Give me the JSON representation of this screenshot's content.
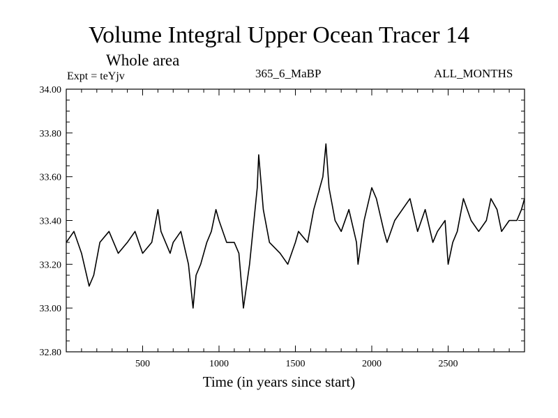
{
  "chart_data": {
    "type": "line",
    "title": "Volume Integral Upper Ocean Tracer 14",
    "subtitle": "Whole area",
    "experiment_label": "Expt = teYjv",
    "run_label": "365_6_MaBP",
    "period_label": "ALL_MONTHS",
    "xlabel": "Time (in years since start)",
    "ylabel": "",
    "xlim": [
      0,
      3000
    ],
    "ylim": [
      32.8,
      34.0
    ],
    "x_ticks": [
      500,
      1000,
      1500,
      2000,
      2500
    ],
    "x_tick_labels": [
      "500",
      "1000",
      "1500",
      "2000",
      "2500"
    ],
    "y_ticks": [
      32.8,
      33.0,
      33.2,
      33.4,
      33.6,
      33.8,
      34.0
    ],
    "y_tick_labels": [
      "32.80",
      "33.00",
      "33.20",
      "33.40",
      "33.60",
      "33.80",
      "34.00"
    ],
    "grid": false,
    "series": [
      {
        "name": "Upper Ocean Tracer 14",
        "x": [
          0,
          50,
          100,
          150,
          180,
          220,
          280,
          340,
          400,
          450,
          500,
          560,
          600,
          620,
          680,
          700,
          750,
          800,
          830,
          850,
          880,
          920,
          950,
          980,
          1000,
          1050,
          1100,
          1130,
          1160,
          1200,
          1250,
          1260,
          1290,
          1330,
          1400,
          1450,
          1500,
          1520,
          1580,
          1620,
          1680,
          1700,
          1720,
          1760,
          1800,
          1850,
          1900,
          1910,
          1950,
          2000,
          2030,
          2080,
          2100,
          2150,
          2200,
          2250,
          2300,
          2350,
          2400,
          2430,
          2480,
          2500,
          2530,
          2560,
          2600,
          2650,
          2700,
          2750,
          2780,
          2820,
          2850,
          2900,
          2950,
          2980,
          3000
        ],
        "values": [
          33.3,
          33.35,
          33.25,
          33.1,
          33.15,
          33.3,
          33.35,
          33.25,
          33.3,
          33.35,
          33.25,
          33.3,
          33.45,
          33.35,
          33.25,
          33.3,
          33.35,
          33.2,
          33.0,
          33.15,
          33.2,
          33.3,
          33.35,
          33.45,
          33.4,
          33.3,
          33.3,
          33.25,
          33.0,
          33.2,
          33.55,
          33.7,
          33.45,
          33.3,
          33.25,
          33.2,
          33.3,
          33.35,
          33.3,
          33.45,
          33.6,
          33.75,
          33.55,
          33.4,
          33.35,
          33.45,
          33.3,
          33.2,
          33.4,
          33.55,
          33.5,
          33.35,
          33.3,
          33.4,
          33.45,
          33.5,
          33.35,
          33.45,
          33.3,
          33.35,
          33.4,
          33.2,
          33.3,
          33.35,
          33.5,
          33.4,
          33.35,
          33.4,
          33.5,
          33.45,
          33.35,
          33.4,
          33.4,
          33.45,
          33.5
        ]
      }
    ]
  }
}
